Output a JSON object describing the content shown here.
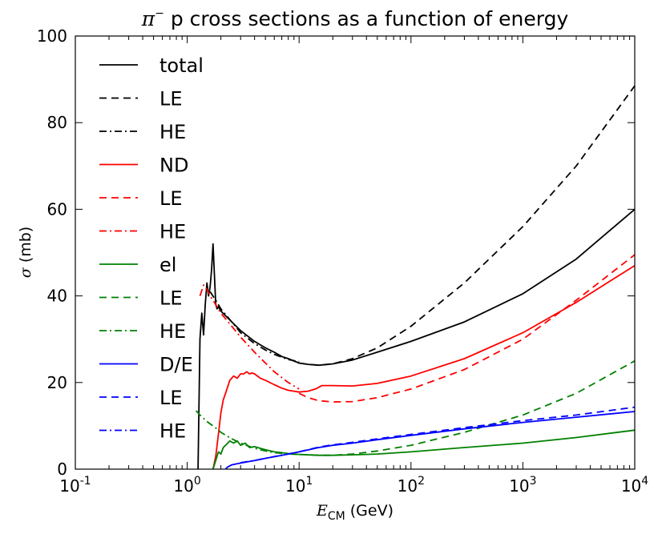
{
  "chart_data": {
    "type": "line",
    "title": {
      "symbol": "π",
      "sup": "−",
      "text": " p cross sections as a function of energy"
    },
    "xlabel": {
      "symbol": "E",
      "sub": "CM",
      "unit": " (GeV)"
    },
    "ylabel": {
      "symbol": "σ",
      "unit": " (mb)"
    },
    "xscale": "log",
    "xlim": [
      0.1,
      10000
    ],
    "ylim": [
      0,
      100
    ],
    "xticks": [
      {
        "base": "10",
        "exp": "-1"
      },
      {
        "base": "10",
        "exp": "0"
      },
      {
        "base": "10",
        "exp": "1"
      },
      {
        "base": "10",
        "exp": "2"
      },
      {
        "base": "10",
        "exp": "3"
      },
      {
        "base": "10",
        "exp": "4"
      }
    ],
    "yticks": [
      "0",
      "20",
      "40",
      "60",
      "80",
      "100"
    ],
    "grid": false,
    "legend_position": "upper-left",
    "series": [
      {
        "name": "total",
        "color": "#000000",
        "style": "solid",
        "x": [
          1.25,
          1.3,
          1.35,
          1.4,
          1.45,
          1.5,
          1.55,
          1.6,
          1.65,
          1.7,
          1.75,
          1.8,
          1.85,
          1.9,
          2,
          2.5,
          3,
          4,
          5,
          6,
          7,
          8,
          10,
          12,
          15,
          20,
          30,
          50,
          100,
          300,
          1000,
          3000,
          10000
        ],
        "y": [
          0,
          30,
          36,
          31,
          38,
          43,
          40,
          42,
          46,
          52,
          45,
          38,
          37,
          37.5,
          36.5,
          34,
          32,
          29.5,
          28,
          27,
          26,
          25.5,
          24.5,
          24.2,
          24,
          24.3,
          25.2,
          27,
          29.5,
          34,
          40.5,
          48.5,
          60
        ]
      },
      {
        "name": "LE",
        "color": "#000000",
        "style": "dashed",
        "x": [
          10,
          12,
          15,
          20,
          30,
          50,
          100,
          300,
          1000,
          3000,
          10000
        ],
        "y": [
          24.5,
          24.2,
          24,
          24.3,
          25.5,
          28,
          33,
          43,
          56,
          70,
          88.5
        ]
      },
      {
        "name": "HE",
        "color": "#000000",
        "style": "dashdot",
        "x": [
          1.6,
          1.8,
          2,
          2.5,
          3,
          4,
          5,
          6,
          8,
          10
        ],
        "y": [
          41,
          39,
          37,
          34,
          31.5,
          29,
          27.5,
          26.5,
          25.3,
          24.8
        ]
      },
      {
        "name": "ND",
        "color": "#ff0000",
        "style": "solid",
        "x": [
          1.7,
          1.8,
          1.9,
          2,
          2.1,
          2.2,
          2.4,
          2.6,
          2.8,
          3,
          3.2,
          3.4,
          3.6,
          3.8,
          4,
          4.5,
          5,
          6,
          7,
          8,
          10,
          12,
          14,
          16,
          20,
          30,
          50,
          100,
          300,
          1000,
          3000,
          10000
        ],
        "y": [
          0,
          3,
          8,
          13,
          16,
          17.5,
          20.5,
          21.5,
          21,
          22,
          22,
          22.5,
          22,
          22.2,
          22,
          21,
          20.5,
          19.5,
          18.7,
          18.2,
          17.8,
          18,
          18.5,
          19.3,
          19.3,
          19.2,
          19.8,
          21.5,
          25.5,
          31.5,
          38.5,
          47
        ]
      },
      {
        "name": "LE",
        "color": "#ff0000",
        "style": "dashed",
        "x": [
          10,
          12,
          15,
          20,
          30,
          50,
          100,
          300,
          1000,
          3000,
          10000
        ],
        "y": [
          17.5,
          16.5,
          15.8,
          15.5,
          15.6,
          16.5,
          18.5,
          23,
          30,
          39,
          49.5
        ]
      },
      {
        "name": "HE",
        "color": "#ff0000",
        "style": "dashdot",
        "x": [
          1.3,
          1.4,
          1.5,
          1.6,
          1.8,
          2,
          2.5,
          3,
          4,
          5,
          6,
          8,
          10
        ],
        "y": [
          40,
          42.5,
          41.5,
          40,
          38,
          36,
          33,
          30.5,
          27,
          24.5,
          22.5,
          20,
          18.5
        ]
      },
      {
        "name": "el",
        "color": "#008000",
        "style": "solid",
        "x": [
          1.7,
          1.8,
          1.9,
          2,
          2.1,
          2.2,
          2.3,
          2.4,
          2.6,
          2.8,
          3,
          3.3,
          3.6,
          4,
          4.5,
          5,
          6,
          7,
          8,
          10,
          15,
          20,
          30,
          50,
          100,
          300,
          1000,
          3000,
          10000
        ],
        "y": [
          0,
          2,
          4,
          3.5,
          5,
          5.5,
          6,
          6.5,
          6,
          6.5,
          5.5,
          6,
          5,
          5.2,
          4.8,
          4.5,
          4,
          3.8,
          3.6,
          3.4,
          3.2,
          3.2,
          3.3,
          3.5,
          4,
          5,
          6,
          7.3,
          9
        ]
      },
      {
        "name": "LE",
        "color": "#008000",
        "style": "dashed",
        "x": [
          10,
          15,
          20,
          30,
          50,
          100,
          300,
          1000,
          3000,
          10000
        ],
        "y": [
          3.4,
          3.2,
          3.2,
          3.5,
          4.2,
          5.5,
          8.5,
          12.5,
          17.5,
          25
        ]
      },
      {
        "name": "HE",
        "color": "#008000",
        "style": "dashdot",
        "x": [
          1.2,
          1.3,
          1.5,
          1.8,
          2,
          2.5,
          3,
          4,
          5,
          6,
          8,
          10
        ],
        "y": [
          13.5,
          12.5,
          11,
          9.5,
          8.5,
          7,
          6,
          4.8,
          4.2,
          3.8,
          3.5,
          3.4
        ]
      },
      {
        "name": "D/E",
        "color": "#0000ff",
        "style": "solid",
        "x": [
          2.2,
          2.3,
          2.5,
          3,
          4,
          5,
          7,
          10,
          15,
          20,
          30,
          50,
          100,
          300,
          1000,
          3000,
          10000
        ],
        "y": [
          0,
          0.5,
          1,
          1.4,
          2,
          2.5,
          3.2,
          4,
          5,
          5.5,
          6,
          6.8,
          7.8,
          9.3,
          10.8,
          12,
          13.3
        ]
      },
      {
        "name": "LE",
        "color": "#0000ff",
        "style": "dashed",
        "x": [
          10,
          15,
          20,
          30,
          50,
          100,
          300,
          1000,
          3000,
          10000
        ],
        "y": [
          4,
          5.1,
          5.6,
          6.2,
          7,
          8,
          9.6,
          11.2,
          12.5,
          14.3
        ]
      },
      {
        "name": "HE",
        "color": "#0000ff",
        "style": "dashdot",
        "x": [
          3,
          4,
          5,
          6,
          8,
          10
        ],
        "y": [
          1.5,
          2,
          2.5,
          2.9,
          3.5,
          4
        ]
      }
    ]
  }
}
